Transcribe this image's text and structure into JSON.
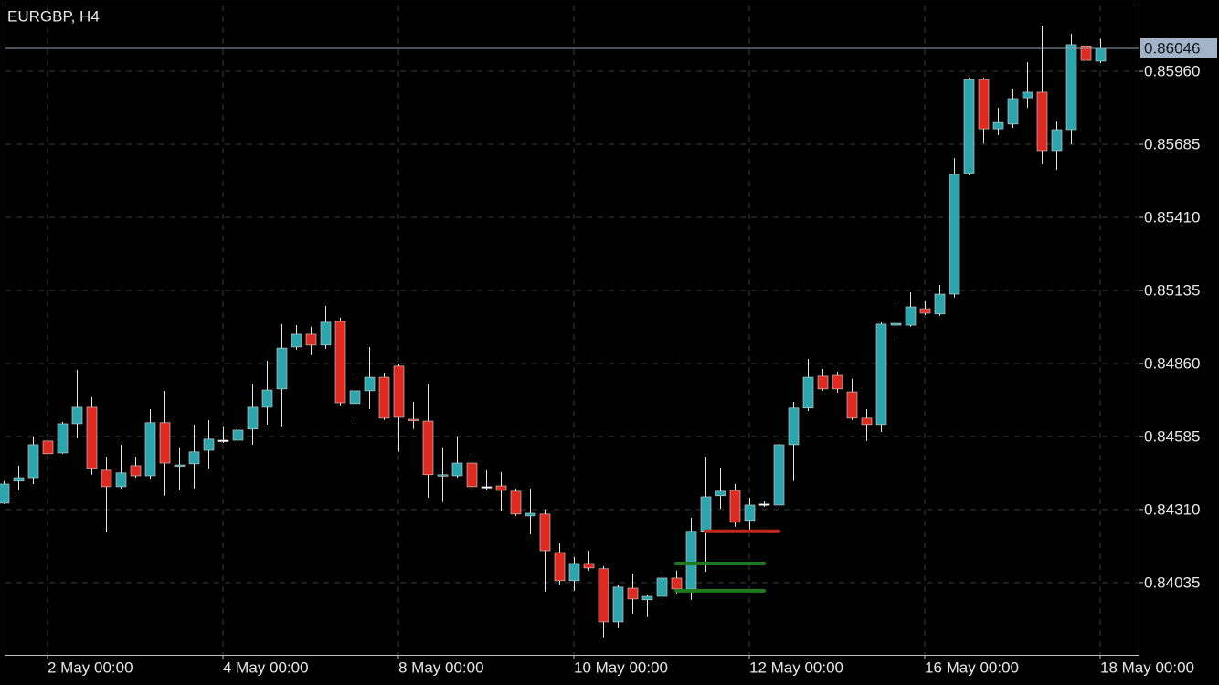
{
  "chart_data": {
    "type": "candlestick",
    "title": "EURGBP, H4",
    "categories": [
      null,
      null,
      null,
      "2 May 00:00",
      null,
      null,
      null,
      null,
      null,
      null,
      null,
      null,
      null,
      null,
      null,
      "4 May 00:00",
      null,
      null,
      null,
      null,
      null,
      null,
      null,
      null,
      null,
      null,
      null,
      "8 May 00:00",
      null,
      null,
      null,
      null,
      null,
      null,
      null,
      null,
      null,
      null,
      null,
      "10 May 00:00",
      null,
      null,
      null,
      null,
      null,
      null,
      null,
      null,
      null,
      null,
      null,
      "12 May 00:00",
      null,
      null,
      null,
      null,
      null,
      null,
      null,
      null,
      null,
      null,
      null,
      "16 May 00:00",
      null,
      null,
      null,
      null,
      null,
      null,
      null,
      null,
      null,
      null,
      null,
      "18 May 00:00"
    ],
    "open": [
      0.84334,
      0.84417,
      0.8443,
      0.84568,
      0.84523,
      0.84633,
      0.84695,
      0.84458,
      0.84396,
      0.84475,
      0.84437,
      0.84637,
      0.84475,
      0.84482,
      0.84533,
      0.84571,
      0.84571,
      0.84613,
      0.84695,
      0.84764,
      0.84922,
      0.8497,
      0.84929,
      0.85018,
      0.84709,
      0.84757,
      0.84808,
      0.8485,
      0.8465,
      0.84643,
      0.84437,
      0.84437,
      0.84485,
      0.84396,
      0.84399,
      0.84379,
      0.84286,
      0.84293,
      0.84148,
      0.84042,
      0.84107,
      0.84087,
      0.83887,
      0.84014,
      0.8397,
      0.83983,
      0.84052,
      0.84011,
      0.84228,
      0.84362,
      0.84382,
      0.84269,
      0.84331,
      0.84327,
      0.84554,
      0.84692,
      0.84812,
      0.84815,
      0.84753,
      0.84654,
      0.8463,
      0.85004,
      0.85004,
      0.85066,
      0.85046,
      0.85121,
      0.85575,
      0.85929,
      0.85743,
      0.85761,
      0.8586,
      0.85881,
      0.85661,
      0.8574,
      0.86055,
      0.85998
    ],
    "high": [
      0.84417,
      0.84475,
      0.84585,
      0.84595,
      0.8464,
      0.84836,
      0.84733,
      0.84509,
      0.84554,
      0.84509,
      0.84688,
      0.84757,
      0.84544,
      0.8463,
      0.84647,
      0.84623,
      0.84626,
      0.84784,
      0.8487,
      0.85008,
      0.85004,
      0.84998,
      0.85077,
      0.85032,
      0.84819,
      0.84922,
      0.84826,
      0.8486,
      0.84716,
      0.84784,
      0.84544,
      0.84585,
      0.8452,
      0.84458,
      0.84451,
      0.84389,
      0.84389,
      0.8431,
      0.84183,
      0.84131,
      0.84155,
      0.84097,
      0.84028,
      0.84069,
      0.8399,
      0.84063,
      0.8408,
      0.84279,
      0.84509,
      0.84468,
      0.84406,
      0.84355,
      0.84341,
      0.84568,
      0.84716,
      0.84877,
      0.84839,
      0.84829,
      0.84802,
      0.84688,
      0.85015,
      0.85077,
      0.85128,
      0.85094,
      0.85156,
      0.85633,
      0.85936,
      0.85936,
      0.85822,
      0.85895,
      0.85994,
      0.86132,
      0.85771,
      0.86101,
      0.86091,
      0.86082
    ],
    "low": [
      0.84331,
      0.84382,
      0.84406,
      0.84509,
      0.8452,
      0.84578,
      0.84441,
      0.84224,
      0.84389,
      0.8443,
      0.84423,
      0.84362,
      0.84382,
      0.84389,
      0.84465,
      0.84561,
      0.84564,
      0.84554,
      0.8463,
      0.84623,
      0.84912,
      0.84891,
      0.84915,
      0.84702,
      0.8464,
      0.84688,
      0.84647,
      0.84527,
      0.84613,
      0.84355,
      0.84338,
      0.8443,
      0.84389,
      0.84382,
      0.84303,
      0.84286,
      0.84217,
      0.84001,
      0.84028,
      0.84004,
      0.8408,
      0.83829,
      0.83863,
      0.83918,
      0.83908,
      0.83953,
      0.83994,
      0.8397,
      0.84076,
      0.84313,
      0.84245,
      0.84231,
      0.8432,
      0.8432,
      0.84417,
      0.84681,
      0.84757,
      0.8475,
      0.84647,
      0.84568,
      0.84602,
      0.84949,
      0.84998,
      0.85042,
      0.85039,
      0.85108,
      0.85568,
      0.85688,
      0.85719,
      0.85747,
      0.85822,
      0.85609,
      0.85589,
      0.85685,
      0.85988,
      0.85991
    ],
    "close": [
      0.84406,
      0.8443,
      0.84554,
      0.8452,
      0.84633,
      0.84695,
      0.84465,
      0.84396,
      0.84448,
      0.84437,
      0.84637,
      0.84485,
      0.84478,
      0.84527,
      0.84575,
      0.84571,
      0.84609,
      0.84695,
      0.8476,
      0.84918,
      0.8497,
      0.84929,
      0.85015,
      0.84712,
      0.84757,
      0.84808,
      0.84654,
      0.84657,
      0.84647,
      0.84441,
      0.84441,
      0.84485,
      0.84396,
      0.84396,
      0.84382,
      0.84293,
      0.84296,
      0.84155,
      0.84042,
      0.84107,
      0.8409,
      0.83887,
      0.84018,
      0.83973,
      0.83983,
      0.84052,
      0.84011,
      0.84228,
      0.84358,
      0.84379,
      0.84262,
      0.84327,
      0.84331,
      0.84554,
      0.84692,
      0.84808,
      0.84764,
      0.84764,
      0.84654,
      0.8463,
      0.85008,
      0.85011,
      0.85073,
      0.85049,
      0.85121,
      0.85572,
      0.85929,
      0.85743,
      0.85767,
      0.85857,
      0.85881,
      0.85661,
      0.8574,
      0.8606,
      0.86001,
      0.86046
    ],
    "up_color": "#2ba6ad",
    "down_color": "#e0291f",
    "doji_color": "#ffffff",
    "current_price": 0.86046,
    "levels": [
      {
        "value": 0.84228,
        "color": "#c4281c",
        "start": 48,
        "end": 52
      },
      {
        "value": 0.84107,
        "color": "#1f7a1f",
        "start": 46,
        "end": 51
      },
      {
        "value": 0.84004,
        "color": "#1f7a1f",
        "start": 46,
        "end": 51
      }
    ],
    "ylim": [
      0.83763,
      0.86211
    ],
    "yticks": [
      0.84035,
      {
        "value": 0.8431,
        "label": "0.84310"
      },
      0.84585,
      {
        "value": 0.8486,
        "label": "0.84860"
      },
      0.85135,
      {
        "value": 0.8541,
        "label": "0.85410"
      },
      0.85685,
      {
        "value": 0.8596,
        "label": "0.85960"
      }
    ],
    "grid": true
  }
}
